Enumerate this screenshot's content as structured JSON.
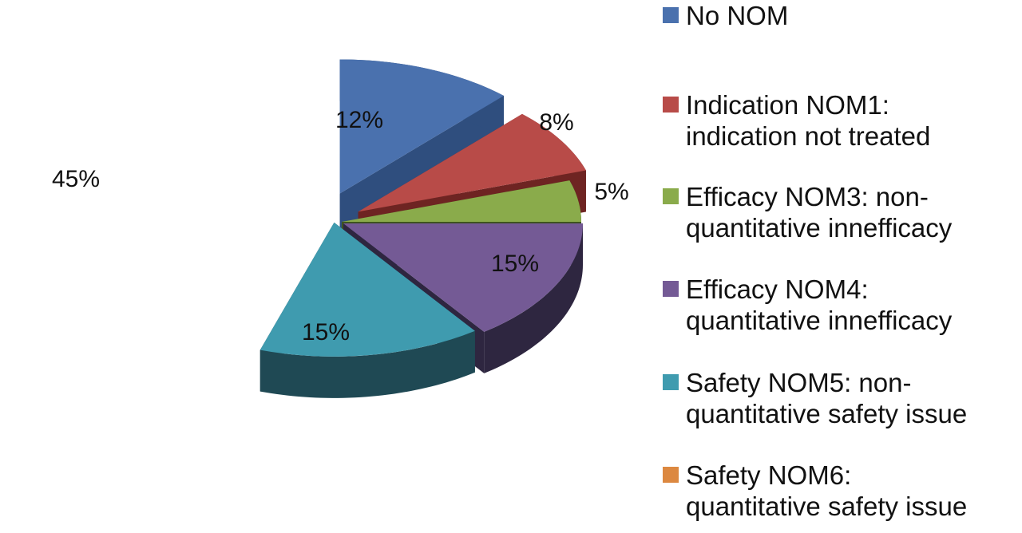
{
  "chart_data": {
    "type": "pie",
    "title": "",
    "slices": [
      {
        "label": "No NOM",
        "value": 12,
        "display": "12%",
        "color": "#4A71AE",
        "side_color": "#2F4E7E"
      },
      {
        "label": "Indication NOM1: indication not treated",
        "value": 8,
        "display": "8%",
        "color": "#B84B48",
        "side_color": "#6E2422"
      },
      {
        "label": "Efficacy NOM3: non-quantitative innefficacy",
        "value": 5,
        "display": "5%",
        "color": "#8AAB4B",
        "side_color": "#3E5320"
      },
      {
        "label": "Efficacy NOM4: quantitative innefficacy",
        "value": 15,
        "display": "15%",
        "color": "#745A95",
        "side_color": "#2E2640"
      },
      {
        "label": "Safety NOM5: non-quantitative safety issue",
        "value": 15,
        "display": "15%",
        "color": "#3F9BAF",
        "side_color": "#1F4954"
      },
      {
        "label": "Safety NOM6: quantitative safety issue",
        "value": 45,
        "display": "45%",
        "color": "#DC8840",
        "side_color": "#B4662A"
      }
    ],
    "legend_position": "right",
    "style": "3d-exploded"
  },
  "legend": {
    "items": [
      {
        "lines": [
          "No NOM"
        ],
        "color": "#4A71AE"
      },
      {
        "lines": [
          "Indication NOM1:",
          "indication not treated"
        ],
        "color": "#B84B48"
      },
      {
        "lines": [
          "Efficacy NOM3: non-",
          "quantitative innefficacy"
        ],
        "color": "#8AAB4B"
      },
      {
        "lines": [
          "Efficacy NOM4:",
          "quantitative innefficacy"
        ],
        "color": "#745A95"
      },
      {
        "lines": [
          "Safety NOM5: non-",
          "quantitative safety issue"
        ],
        "color": "#3F9BAF"
      },
      {
        "lines": [
          "Safety NOM6:",
          "quantitative safety issue"
        ],
        "color": "#DC8840"
      }
    ]
  }
}
